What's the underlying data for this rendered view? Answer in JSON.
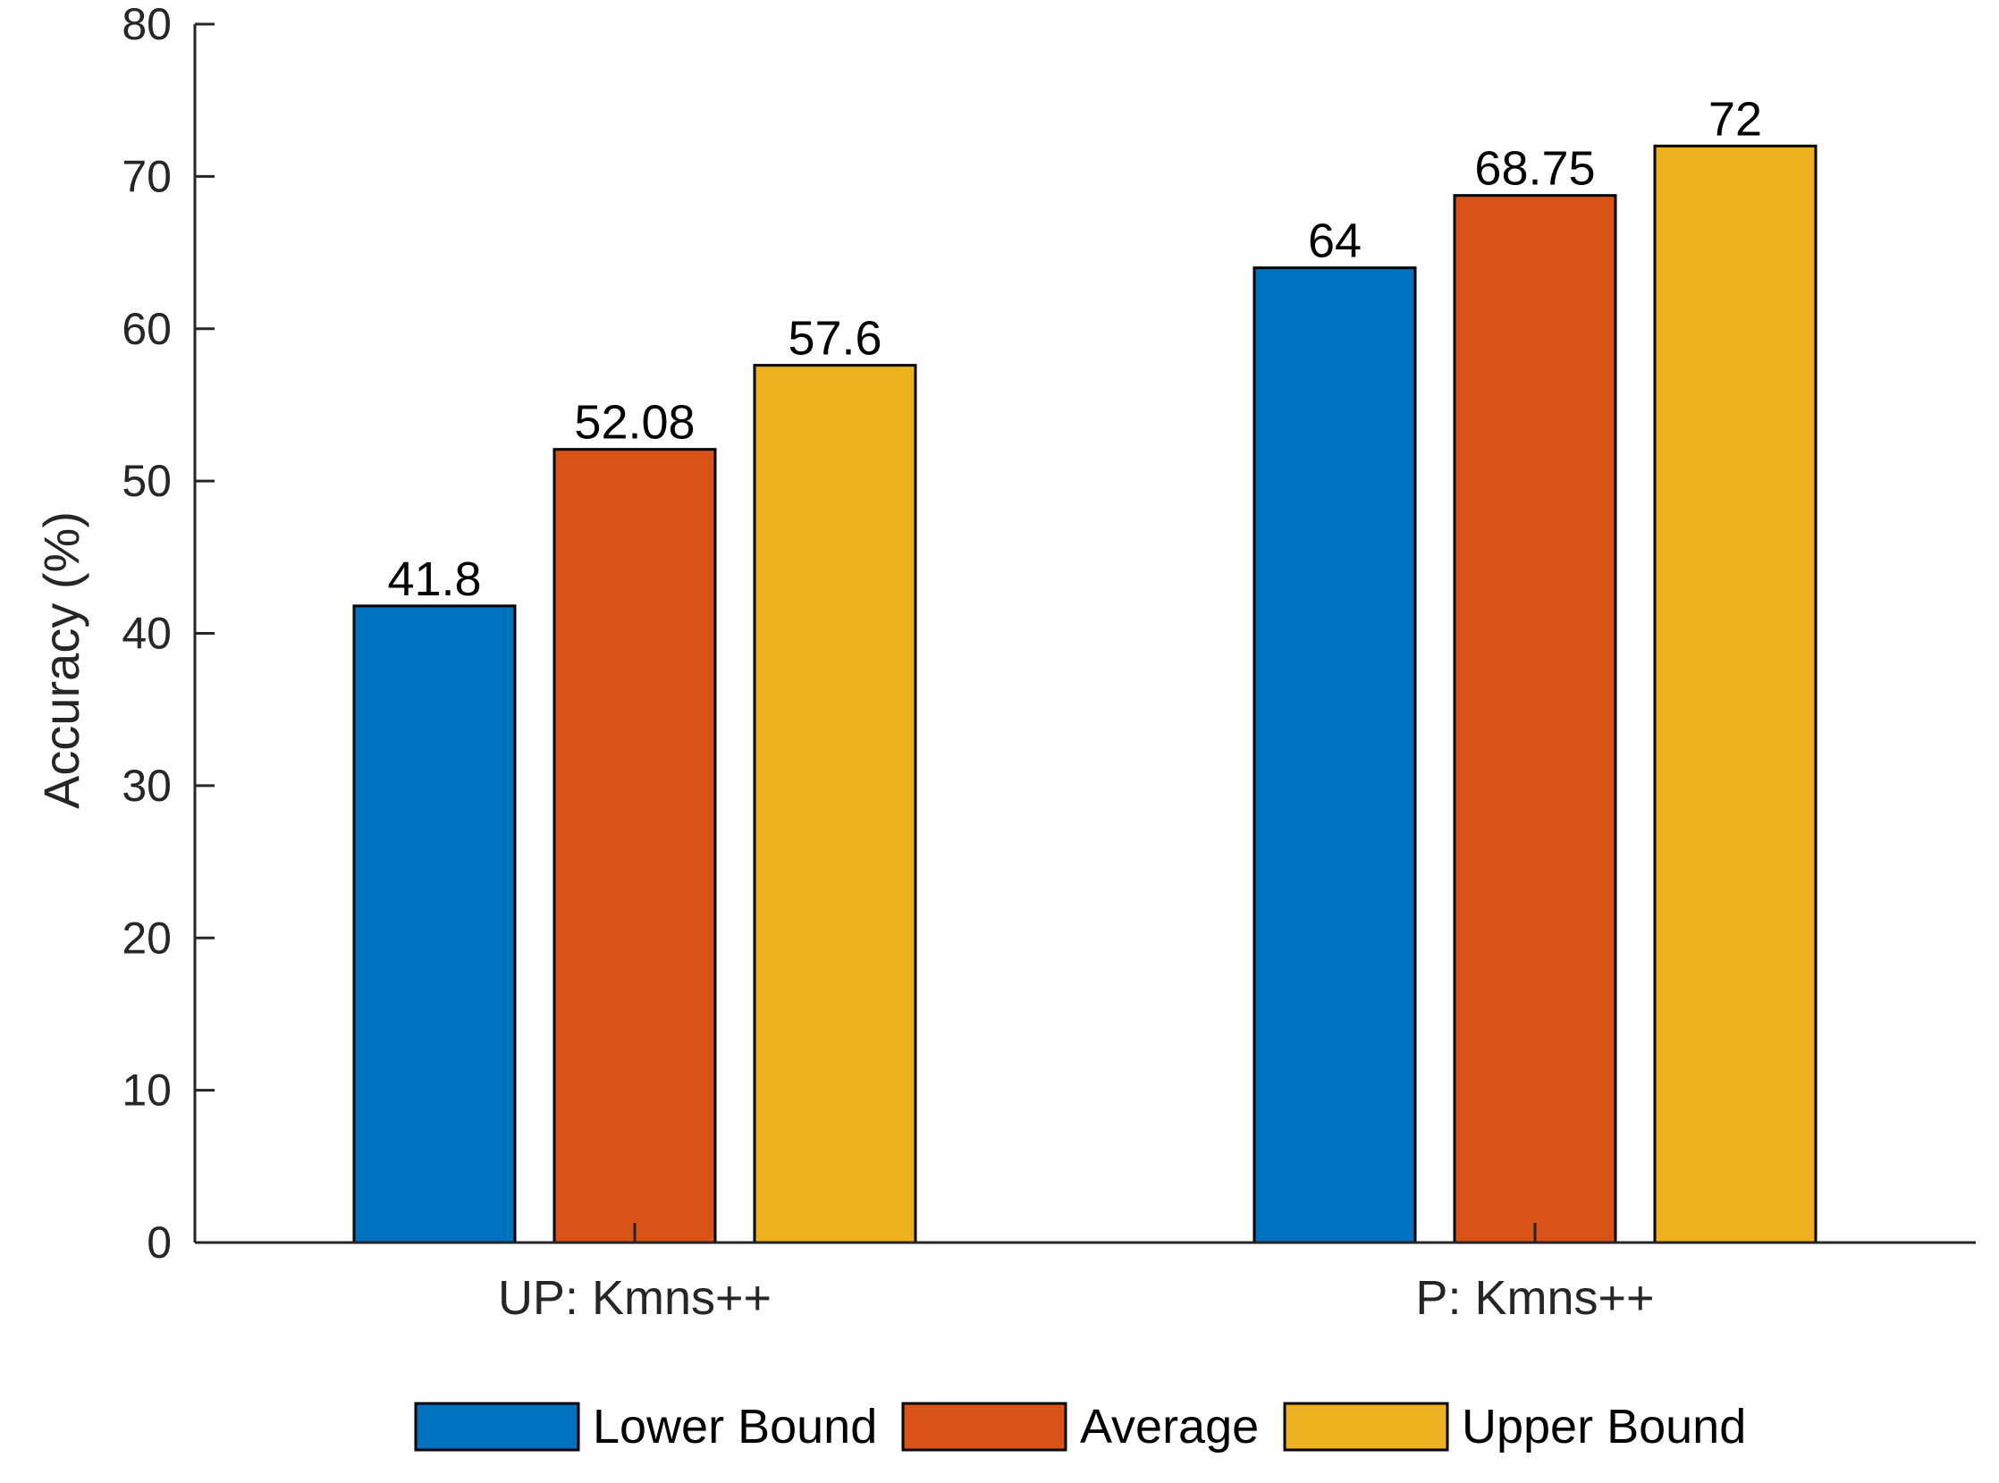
{
  "chart_data": {
    "type": "bar",
    "title": "",
    "xlabel": "",
    "ylabel": "Accuracy (%)",
    "ylim": [
      0,
      80
    ],
    "yticks": [
      0,
      10,
      20,
      30,
      40,
      50,
      60,
      70,
      80
    ],
    "grid": false,
    "categories": [
      "UP: Kmns++",
      "P: Kmns++"
    ],
    "series": [
      {
        "name": "Lower Bound",
        "color": "#0072BD",
        "values": [
          41.8,
          64
        ],
        "labels": [
          "41.8",
          "64"
        ]
      },
      {
        "name": "Average",
        "color": "#D95319",
        "values": [
          52.08,
          68.75
        ],
        "labels": [
          "52.08",
          "68.75"
        ]
      },
      {
        "name": "Upper Bound",
        "color": "#EDB120",
        "values": [
          57.6,
          72
        ],
        "labels": [
          "57.6",
          "72"
        ]
      }
    ],
    "legend_position": "bottom"
  }
}
